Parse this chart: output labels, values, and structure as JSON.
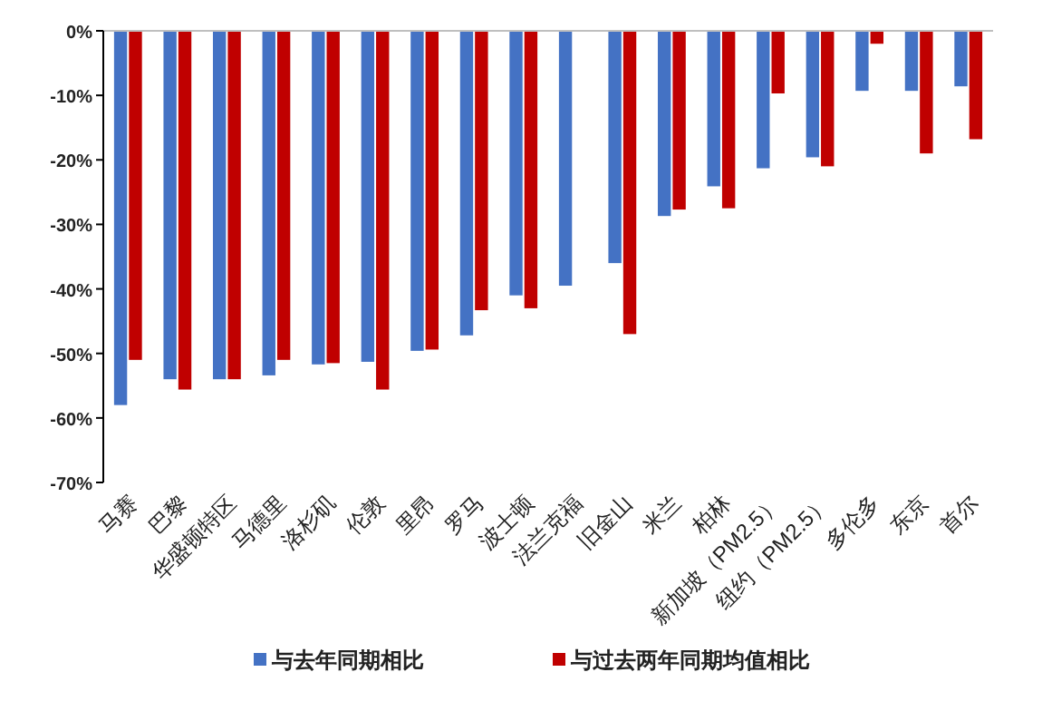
{
  "chart_data": {
    "type": "bar",
    "categories": [
      "马赛",
      "巴黎",
      "华盛顿特区",
      "马德里",
      "洛杉矶",
      "伦敦",
      "里昂",
      "罗马",
      "波士顿",
      "法兰克福",
      "旧金山",
      "米兰",
      "柏林",
      "新加坡（PM2.5）",
      "纽约（PM2.5）",
      "多伦多",
      "东京",
      "首尔"
    ],
    "series": [
      {
        "name": "与去年同期相比",
        "color": "#4472c4",
        "values": [
          -58,
          -54,
          -54,
          -53.4,
          -51.7,
          -51.3,
          -49.6,
          -47.2,
          -41,
          -39.5,
          -36,
          -28.7,
          -24.1,
          -21.3,
          -19.6,
          -9.3,
          -9.3,
          -8.6
        ]
      },
      {
        "name": "与过去两年同期均值相比",
        "color": "#c00000",
        "values": [
          -51,
          -55.6,
          -54,
          -51,
          -51.5,
          -55.6,
          -49.4,
          -43.3,
          -43,
          null,
          -47,
          -27.7,
          -27.5,
          -9.7,
          -21,
          -2,
          -19,
          -16.8
        ]
      }
    ],
    "ylim": [
      -70,
      0
    ],
    "yticks": [
      {
        "value": -70,
        "label": "-70%"
      },
      {
        "value": -60,
        "label": "-60%"
      },
      {
        "value": -50,
        "label": "-50%"
      },
      {
        "value": -40,
        "label": "-40%"
      },
      {
        "value": -30,
        "label": "-30%"
      },
      {
        "value": -20,
        "label": "-20%"
      },
      {
        "value": -10,
        "label": "-10%"
      },
      {
        "value": 0,
        "label": "0%"
      }
    ],
    "grid": false,
    "legend": "bottom"
  }
}
